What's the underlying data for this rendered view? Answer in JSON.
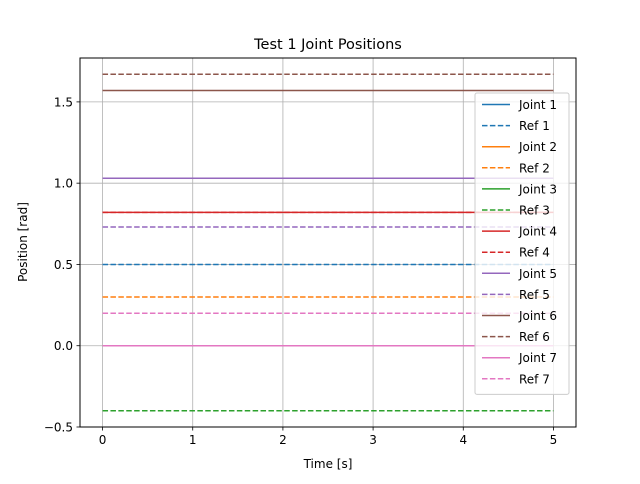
{
  "chart_data": {
    "type": "line",
    "title": "Test 1 Joint Positions",
    "xlabel": "Time [s]",
    "ylabel": "Position [rad]",
    "xlim": [
      -0.25,
      5.25
    ],
    "ylim": [
      -0.5,
      1.77
    ],
    "xticks": [
      0,
      1,
      2,
      3,
      4,
      5
    ],
    "xtick_labels": [
      "0",
      "1",
      "2",
      "3",
      "4",
      "5"
    ],
    "yticks": [
      -0.5,
      0.0,
      0.5,
      1.0,
      1.5
    ],
    "ytick_labels": [
      "−0.5",
      "0.0",
      "0.5",
      "1.0",
      "1.5"
    ],
    "grid": true,
    "legend_position": "right",
    "x": [
      0,
      5
    ],
    "series": [
      {
        "name": "Joint 1",
        "style": "solid",
        "color": "#1f77b4",
        "values": [
          0.0,
          0.0
        ]
      },
      {
        "name": "Ref 1",
        "style": "dashed",
        "color": "#1f77b4",
        "values": [
          0.5,
          0.5
        ]
      },
      {
        "name": "Joint 2",
        "style": "solid",
        "color": "#ff7f0e",
        "values": [
          0.0,
          0.0
        ]
      },
      {
        "name": "Ref 2",
        "style": "dashed",
        "color": "#ff7f0e",
        "values": [
          0.3,
          0.3
        ]
      },
      {
        "name": "Joint 3",
        "style": "solid",
        "color": "#2ca02c",
        "values": [
          0.0,
          0.0
        ]
      },
      {
        "name": "Ref 3",
        "style": "dashed",
        "color": "#2ca02c",
        "values": [
          -0.4,
          -0.4
        ]
      },
      {
        "name": "Joint 4",
        "style": "solid",
        "color": "#d62728",
        "values": [
          0.82,
          0.82
        ]
      },
      {
        "name": "Ref 4",
        "style": "dashed",
        "color": "#d62728",
        "values": [
          0.82,
          0.82
        ]
      },
      {
        "name": "Joint 5",
        "style": "solid",
        "color": "#9467bd",
        "values": [
          1.03,
          1.03
        ]
      },
      {
        "name": "Ref 5",
        "style": "dashed",
        "color": "#9467bd",
        "values": [
          0.73,
          0.73
        ]
      },
      {
        "name": "Joint 6",
        "style": "solid",
        "color": "#8c564b",
        "values": [
          1.57,
          1.57
        ]
      },
      {
        "name": "Ref 6",
        "style": "dashed",
        "color": "#8c564b",
        "values": [
          1.67,
          1.67
        ]
      },
      {
        "name": "Joint 7",
        "style": "solid",
        "color": "#e377c2",
        "values": [
          0.0,
          0.0
        ]
      },
      {
        "name": "Ref 7",
        "style": "dashed",
        "color": "#e377c2",
        "values": [
          0.2,
          0.2
        ]
      }
    ]
  }
}
